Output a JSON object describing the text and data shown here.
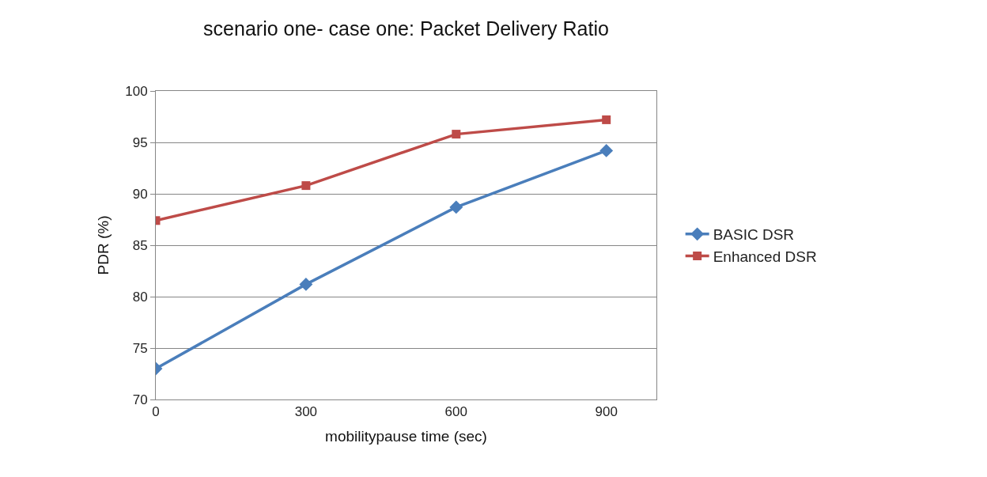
{
  "chart_data": {
    "type": "line",
    "title": "scenario one- case one: Packet Delivery Ratio",
    "xlabel": "mobilitypause time (sec)",
    "ylabel": "PDR (%)",
    "x": [
      0,
      300,
      600,
      900
    ],
    "series": [
      {
        "name": "BASIC DSR",
        "color": "#4a7ebb",
        "marker": "diamond",
        "values": [
          73.0,
          81.2,
          88.7,
          94.2
        ]
      },
      {
        "name": "Enhanced DSR",
        "color": "#be4b48",
        "marker": "square",
        "values": [
          87.4,
          90.8,
          95.8,
          97.2
        ]
      }
    ],
    "xlim": [
      0,
      1000
    ],
    "xticks": [
      0,
      300,
      600,
      900
    ],
    "ylim": [
      70,
      100
    ],
    "yticks": [
      70,
      75,
      80,
      85,
      90,
      95,
      100
    ],
    "grid": "y",
    "legend": "right",
    "line_style": "solid"
  }
}
